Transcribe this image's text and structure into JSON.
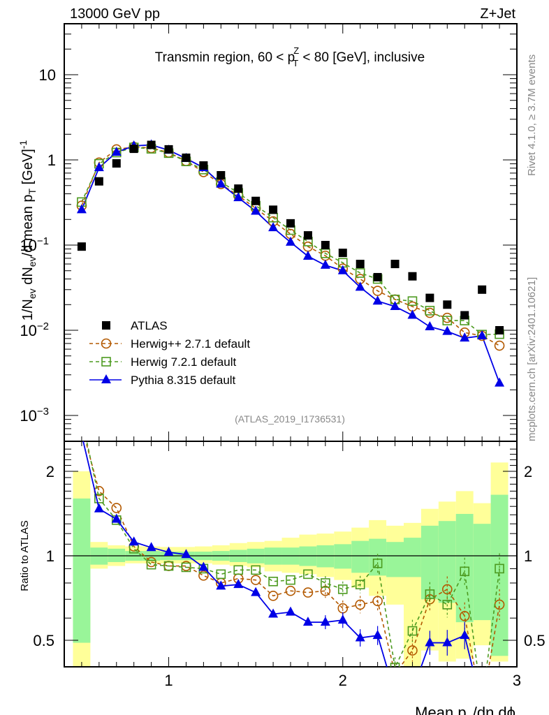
{
  "header": {
    "left": "13000 GeV pp",
    "right": "Z+Jet"
  },
  "side_labels": {
    "rivet": "Rivet 4.1.0, ≥ 3.7M events",
    "mcplots": "mcplots.cern.ch [arXiv:2401.10621]"
  },
  "chart_data": {
    "type": "line",
    "title": "Transmin region, 60 < p_T^Z < 80 [GeV], inclusive",
    "title_parts": {
      "pre": "Transmin region, 60 < p",
      "sup": "Z",
      "sub": "T",
      "post": " < 80 [GeV], inclusive"
    },
    "analysis_id": "(ATLAS_2019_I1736531)",
    "xlabel": "Mean p_T/dη dϕ",
    "xlabel_parts": {
      "pre": "Mean p",
      "sub": "T",
      "post": "/dη dϕ"
    },
    "ylabel": "1/N_ev dN_ev/d mean p_T [GeV]^-1",
    "ylabel_parts": {
      "a": "1/N",
      "a_sub": "ev",
      "b": " dN",
      "b_sub": "ev",
      "c": "/d mean p",
      "c_sub": "T",
      "d": " [GeV]",
      "d_sup": "-1"
    },
    "ratio_ylabel": "Ratio to ATLAS",
    "xlim": [
      0.4,
      3.0
    ],
    "ylim": [
      0.00055,
      40
    ],
    "yscale": "log",
    "ratio_ylim": [
      0.42,
      2.5
    ],
    "ratio_yscale": "log",
    "x_ticks": [
      {
        "v": 1,
        "label": "1"
      },
      {
        "v": 2,
        "label": "2"
      },
      {
        "v": 3,
        "label": "3"
      }
    ],
    "y_ticks": [
      {
        "v": 10,
        "label": "10",
        "exp": ""
      },
      {
        "v": 1,
        "label": "1",
        "exp": ""
      },
      {
        "v": 0.1,
        "label": "10",
        "exp": "−1"
      },
      {
        "v": 0.01,
        "label": "10",
        "exp": "−2"
      },
      {
        "v": 0.001,
        "label": "10",
        "exp": "−3"
      }
    ],
    "ratio_ticks": [
      {
        "v": 0.5,
        "label": "0.5"
      },
      {
        "v": 1,
        "label": "1"
      },
      {
        "v": 2,
        "label": "2"
      }
    ],
    "x": [
      0.5,
      0.6,
      0.7,
      0.8,
      0.9,
      1.0,
      1.1,
      1.2,
      1.3,
      1.4,
      1.5,
      1.6,
      1.7,
      1.8,
      1.9,
      2.0,
      2.1,
      2.2,
      2.3,
      2.4,
      2.5,
      2.6,
      2.7,
      2.8,
      2.9
    ],
    "series": [
      {
        "name": "ATLAS",
        "legend": "ATLAS",
        "style": "data",
        "color": "#000000",
        "marker": "square-filled",
        "values": [
          0.096,
          0.56,
          0.91,
          1.35,
          1.5,
          1.33,
          1.06,
          0.86,
          0.66,
          0.46,
          0.33,
          0.26,
          0.18,
          0.13,
          0.1,
          0.081,
          0.06,
          0.042,
          0.06,
          0.043,
          0.024,
          0.02,
          0.015,
          0.03,
          0.01
        ]
      },
      {
        "name": "Herwig++ 2.7.1 default",
        "legend": "Herwig++ 2.7.1 default",
        "style": "dashed",
        "color": "#b35900",
        "marker": "circle-open",
        "values": [
          0.29,
          0.93,
          1.33,
          1.42,
          1.38,
          1.22,
          0.97,
          0.72,
          0.52,
          0.38,
          0.27,
          0.19,
          0.135,
          0.096,
          0.075,
          0.053,
          0.04,
          0.029,
          0.023,
          0.019,
          0.016,
          0.014,
          0.0094,
          0.0086,
          0.0066
        ],
        "ratio": [
          2.9,
          1.7,
          1.48,
          1.08,
          0.95,
          0.92,
          0.92,
          0.85,
          0.8,
          0.83,
          0.82,
          0.72,
          0.75,
          0.74,
          0.75,
          0.65,
          0.67,
          0.69,
          0.38,
          0.46,
          0.7,
          0.76,
          0.61,
          0.29,
          0.67
        ]
      },
      {
        "name": "Herwig 7.2.1 default",
        "legend": "Herwig 7.2.1 default",
        "style": "dashed",
        "color": "#4c9a1f",
        "marker": "square-open",
        "values": [
          0.32,
          0.9,
          1.22,
          1.4,
          1.35,
          1.2,
          0.96,
          0.77,
          0.55,
          0.41,
          0.29,
          0.21,
          0.15,
          0.11,
          0.08,
          0.062,
          0.047,
          0.04,
          0.023,
          0.022,
          0.017,
          0.013,
          0.013,
          0.0089,
          0.009
        ],
        "ratio": [
          3.1,
          1.6,
          1.34,
          1.06,
          0.93,
          0.92,
          0.91,
          0.9,
          0.86,
          0.89,
          0.89,
          0.81,
          0.82,
          0.86,
          0.8,
          0.76,
          0.79,
          0.94,
          0.4,
          0.54,
          0.73,
          0.67,
          0.88,
          0.3,
          0.9
        ]
      },
      {
        "name": "Pythia 8.315 default",
        "legend": "Pythia 8.315 default",
        "style": "solid",
        "color": "#0000e6",
        "marker": "triangle-filled",
        "values": [
          0.26,
          0.81,
          1.23,
          1.46,
          1.5,
          1.3,
          1.04,
          0.81,
          0.52,
          0.36,
          0.25,
          0.16,
          0.108,
          0.074,
          0.058,
          0.05,
          0.032,
          0.022,
          0.019,
          0.015,
          0.011,
          0.0097,
          0.0081,
          0.0086,
          0.0024
        ],
        "ratio": [
          2.7,
          1.47,
          1.35,
          1.12,
          1.07,
          1.03,
          1.01,
          0.91,
          0.78,
          0.79,
          0.74,
          0.62,
          0.63,
          0.58,
          0.58,
          0.59,
          0.51,
          0.52,
          0.32,
          0.33,
          0.49,
          0.49,
          0.52,
          0.29,
          0.24
        ]
      }
    ],
    "bands": {
      "stat_color": "#99f599",
      "total_color": "#ffff99",
      "stat_up": [
        1.6,
        1.07,
        1.06,
        1.04,
        1.04,
        1.035,
        1.035,
        1.035,
        1.04,
        1.05,
        1.06,
        1.07,
        1.07,
        1.08,
        1.09,
        1.1,
        1.13,
        1.15,
        1.12,
        1.16,
        1.28,
        1.33,
        1.41,
        1.3,
        1.65
      ],
      "stat_down": [
        0.49,
        0.93,
        0.95,
        0.96,
        0.96,
        0.965,
        0.965,
        0.965,
        0.96,
        0.95,
        0.94,
        0.93,
        0.93,
        0.92,
        0.91,
        0.9,
        0.87,
        0.85,
        0.84,
        0.84,
        0.7,
        0.68,
        0.58,
        0.59,
        0.44
      ],
      "tot_up": [
        2.0,
        1.12,
        1.09,
        1.08,
        1.08,
        1.075,
        1.075,
        1.08,
        1.09,
        1.11,
        1.12,
        1.13,
        1.16,
        1.19,
        1.2,
        1.22,
        1.26,
        1.34,
        1.28,
        1.31,
        1.47,
        1.56,
        1.7,
        1.54,
        2.15
      ],
      "tot_down": [
        0.38,
        0.9,
        0.92,
        0.94,
        0.94,
        0.94,
        0.94,
        0.94,
        0.93,
        0.92,
        0.91,
        0.88,
        0.87,
        0.86,
        0.84,
        0.82,
        0.77,
        0.72,
        0.67,
        0.4,
        0.46,
        0.42,
        0.43,
        0.48,
        0.42
      ]
    },
    "legend_position": "bottom-left",
    "grid": false
  }
}
